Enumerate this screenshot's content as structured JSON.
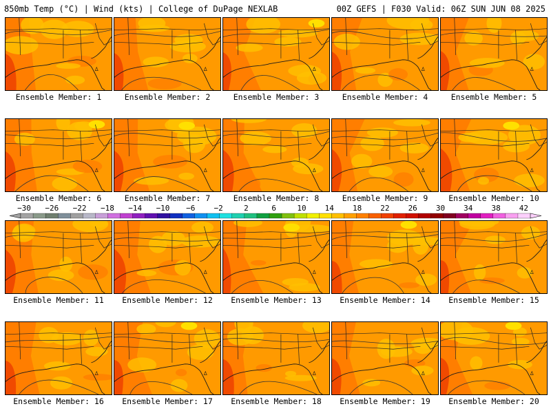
{
  "header": {
    "left": "850mb Temp (°C) | Wind (kts) | College of DuPage NEXLAB",
    "right": "00Z GEFS | F030 Valid: 06Z SUN JUN 08 2025"
  },
  "members": [
    {
      "label": "Ensemble Member: 1"
    },
    {
      "label": "Ensemble Member: 2"
    },
    {
      "label": "Ensemble Member: 3"
    },
    {
      "label": "Ensemble Member: 4"
    },
    {
      "label": "Ensemble Member: 5"
    },
    {
      "label": "Ensemble Member: 6"
    },
    {
      "label": "Ensemble Member: 7"
    },
    {
      "label": "Ensemble Member: 8"
    },
    {
      "label": "Ensemble Member: 9"
    },
    {
      "label": "Ensemble Member: 10"
    },
    {
      "label": "Ensemble Member: 11"
    },
    {
      "label": "Ensemble Member: 12"
    },
    {
      "label": "Ensemble Member: 13"
    },
    {
      "label": "Ensemble Member: 14"
    },
    {
      "label": "Ensemble Member: 15"
    },
    {
      "label": "Ensemble Member: 16"
    },
    {
      "label": "Ensemble Member: 17"
    },
    {
      "label": "Ensemble Member: 18"
    },
    {
      "label": "Ensemble Member: 19"
    },
    {
      "label": "Ensemble Member: 20"
    }
  ],
  "colorbar": {
    "tick_labels": [
      "−30",
      "−26",
      "−22",
      "−18",
      "−14",
      "−10",
      "−6",
      "−2",
      "2",
      "6",
      "10",
      "14",
      "18",
      "22",
      "26",
      "30",
      "34",
      "38",
      "42"
    ],
    "colors": [
      "#a3a3a3",
      "#8a9a8a",
      "#6f7f6f",
      "#7f8f9a",
      "#a0a0a0",
      "#b8b8c8",
      "#c8a0d8",
      "#d070e0",
      "#c040d0",
      "#9020c0",
      "#6010b0",
      "#3010a0",
      "#1030c0",
      "#1060e0",
      "#1090f0",
      "#10c0f0",
      "#20e0e0",
      "#20d0b0",
      "#20c080",
      "#10a040",
      "#30a010",
      "#80c010",
      "#c0e000",
      "#f0f000",
      "#ffe000",
      "#ffc000",
      "#ffa000",
      "#ff8000",
      "#f86000",
      "#f04000",
      "#e02000",
      "#d01000",
      "#b00000",
      "#900000",
      "#800020",
      "#a00060",
      "#c000a0",
      "#e020c0",
      "#f060e0",
      "#f8a0f0",
      "#fcd0fc"
    ]
  },
  "palette": {
    "warm": "#ff9a00",
    "warmer": "#ff7e00",
    "hot": "#f04a00",
    "cool": "#ffc000",
    "coolest": "#ffe000"
  }
}
